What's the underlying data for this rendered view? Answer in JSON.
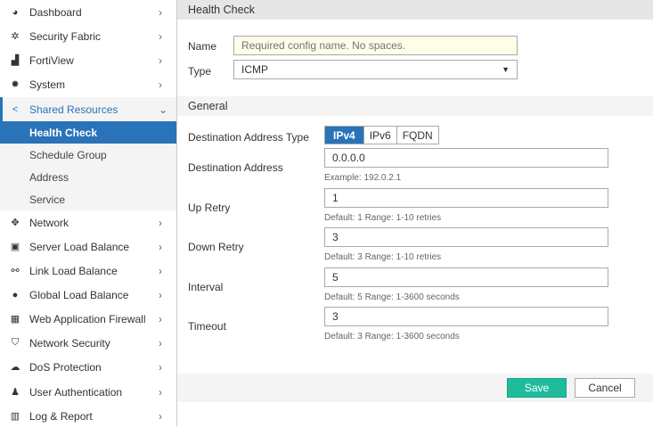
{
  "sidebar": {
    "items": [
      {
        "label": "Dashboard",
        "icon": "dashboard-icon",
        "glyph": "◕"
      },
      {
        "label": "Security Fabric",
        "icon": "security-fabric-icon",
        "glyph": "✲"
      },
      {
        "label": "FortiView",
        "icon": "chart-icon",
        "glyph": "▟"
      },
      {
        "label": "System",
        "icon": "gear-icon",
        "glyph": "✹"
      },
      {
        "label": "Shared Resources",
        "icon": "share-icon",
        "glyph": "<"
      },
      {
        "label": "Network",
        "icon": "move-icon",
        "glyph": "✥"
      },
      {
        "label": "Server Load Balance",
        "icon": "server-load-balance-icon",
        "glyph": "▣"
      },
      {
        "label": "Link Load Balance",
        "icon": "link-icon",
        "glyph": "⚯"
      },
      {
        "label": "Global Load Balance",
        "icon": "globe-icon",
        "glyph": "●"
      },
      {
        "label": "Web Application Firewall",
        "icon": "firewall-icon",
        "glyph": "▦"
      },
      {
        "label": "Network Security",
        "icon": "shield-icon",
        "glyph": "⛉"
      },
      {
        "label": "DoS Protection",
        "icon": "cloud-icon",
        "glyph": "☁"
      },
      {
        "label": "User Authentication",
        "icon": "user-icon",
        "glyph": "♟"
      },
      {
        "label": "Log & Report",
        "icon": "bar-chart-icon",
        "glyph": "▥"
      }
    ],
    "sub_items": [
      {
        "label": "Health Check"
      },
      {
        "label": "Schedule Group"
      },
      {
        "label": "Address"
      },
      {
        "label": "Service"
      }
    ]
  },
  "header": {
    "title": "Health Check"
  },
  "form": {
    "name_label": "Name",
    "name_placeholder": "Required config name. No spaces.",
    "type_label": "Type",
    "type_value": "ICMP",
    "general_title": "General",
    "dest_type_label": "Destination Address Type",
    "dest_type_options": [
      "IPv4",
      "IPv6",
      "FQDN"
    ],
    "dest_type_selected": "IPv4",
    "fields": [
      {
        "label": "Destination Address",
        "value": "0.0.0.0",
        "hint": "Example: 192.0.2.1"
      },
      {
        "label": "Up Retry",
        "value": "1",
        "hint": "Default: 1 Range: 1-10 retries"
      },
      {
        "label": "Down Retry",
        "value": "3",
        "hint": "Default: 3 Range: 1-10 retries"
      },
      {
        "label": "Interval",
        "value": "5",
        "hint": "Default: 5 Range: 1-3600 seconds"
      },
      {
        "label": "Timeout",
        "value": "3",
        "hint": "Default: 3 Range: 1-3600 seconds"
      }
    ]
  },
  "footer": {
    "save_label": "Save",
    "cancel_label": "Cancel"
  },
  "colors": {
    "accent": "#2a73b8",
    "save": "#1fbc9c"
  }
}
